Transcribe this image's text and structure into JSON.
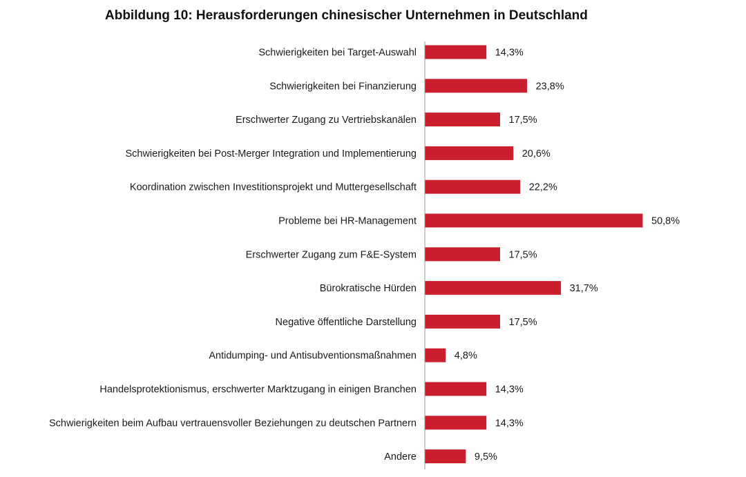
{
  "chart_data": {
    "type": "bar",
    "orientation": "horizontal",
    "title": "Abbildung 10: Herausforderungen chinesischer Unternehmen in Deutschland",
    "unit": "%",
    "categories": [
      "Schwierigkeiten bei Target-Auswahl",
      "Schwierigkeiten bei Finanzierung",
      "Erschwerter Zugang zu Vertriebskanälen",
      "Schwierigkeiten bei Post-Merger Integration und Implementierung",
      "Koordination zwischen Investitionsprojekt und Muttergesellschaft",
      "Probleme bei HR-Management",
      "Erschwerter Zugang zum F&E-System",
      "Bürokratische Hürden",
      "Negative öffentliche Darstellung",
      "Antidumping- und Antisubventionsmaßnahmen",
      "Handelsprotektionismus, erschwerter Marktzugang in einigen Branchen",
      "Schwierigkeiten beim Aufbau vertrauensvoller Beziehungen zu deutschen Partnern",
      "Andere"
    ],
    "values": [
      14.3,
      23.8,
      17.5,
      20.6,
      22.2,
      50.8,
      17.5,
      31.7,
      17.5,
      4.8,
      14.3,
      14.3,
      9.5
    ],
    "value_labels": [
      "14,3%",
      "23,8%",
      "17,5%",
      "20,6%",
      "22,2%",
      "50,8%",
      "17,5%",
      "31,7%",
      "17,5%",
      "4,8%",
      "14,3%",
      "14,3%",
      "9,5%"
    ],
    "xlim": [
      0,
      50.8
    ],
    "grid": false,
    "legend": "none",
    "bar_color": "#cc1f2d",
    "axis_color": "#9a9a9a"
  }
}
